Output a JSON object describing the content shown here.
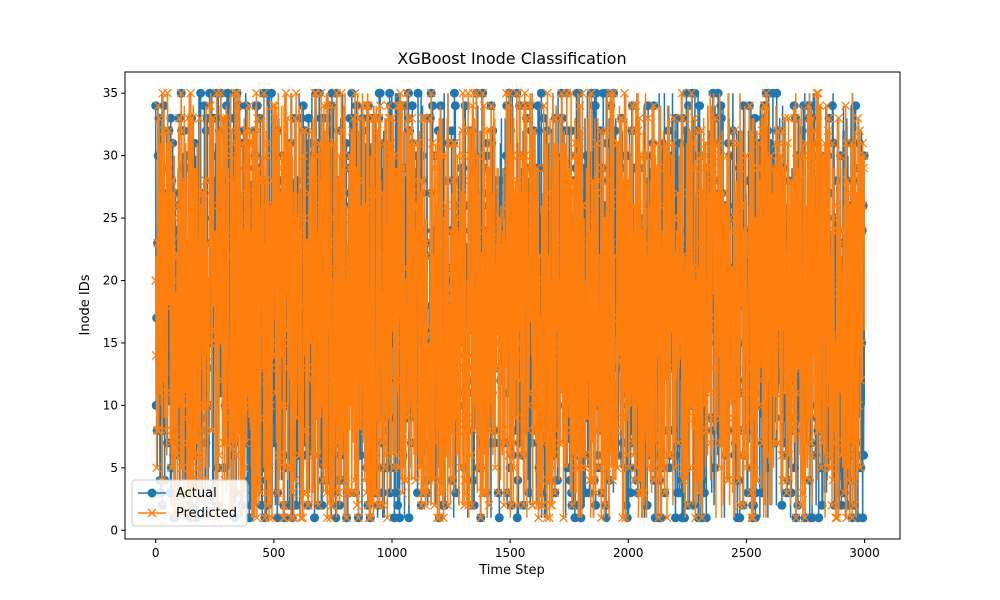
{
  "chart_data": {
    "type": "line",
    "title": "XGBoost Inode Classification",
    "xlabel": "Time Step",
    "ylabel": "Inode IDs",
    "xlim": [
      -130,
      3150
    ],
    "ylim": [
      -0.7,
      36.7
    ],
    "x_ticks": [
      0,
      500,
      1000,
      1500,
      2000,
      2500,
      3000
    ],
    "x_tick_labels": [
      "0",
      "500",
      "1000",
      "1500",
      "2000",
      "2500",
      "3000"
    ],
    "y_ticks": [
      0,
      5,
      10,
      15,
      20,
      25,
      30,
      35
    ],
    "y_tick_labels": [
      "0",
      "5",
      "10",
      "15",
      "20",
      "25",
      "30",
      "35"
    ],
    "grid": false,
    "legend_position": "lower-left",
    "x_range": [
      0,
      2999
    ],
    "value_range": [
      1,
      35
    ],
    "series": [
      {
        "name": "Actual",
        "marker": "circle",
        "color": "#1f77b4"
      },
      {
        "name": "Predicted",
        "marker": "x",
        "color": "#ff7f0e"
      }
    ]
  }
}
